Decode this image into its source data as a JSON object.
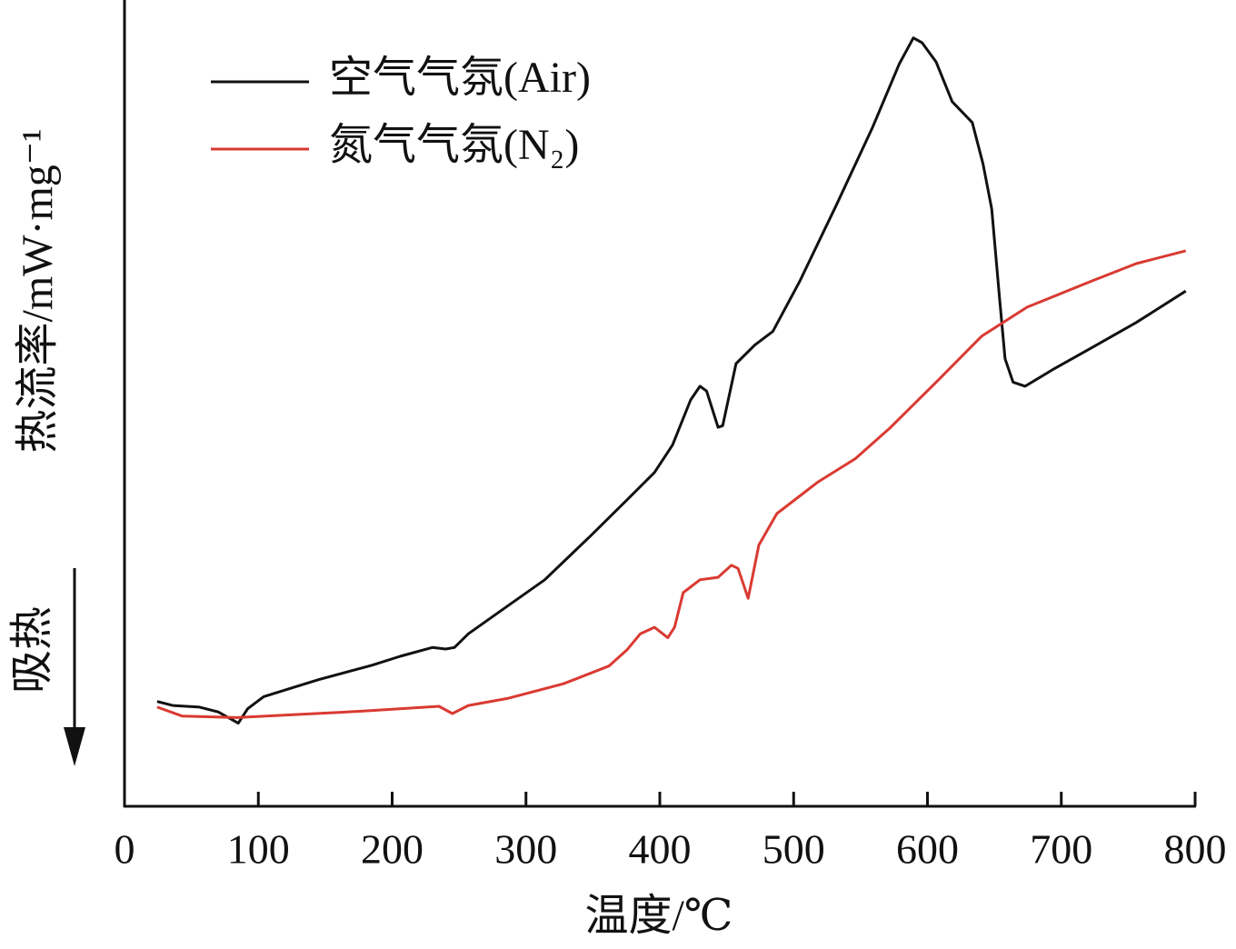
{
  "chart_data": {
    "type": "line",
    "xlabel": "温度/℃",
    "ylabel": "热流率/mW·mg⁻¹",
    "annotation": "吸热",
    "xlim": [
      0,
      800
    ],
    "xticks": [
      0,
      100,
      200,
      300,
      400,
      500,
      600,
      700,
      800
    ],
    "ylim": [
      0,
      100
    ],
    "legend": "upper left",
    "series": [
      {
        "name": "空气气氛(Air)",
        "color": "#111111",
        "x": [
          24.4,
          36,
          56,
          70,
          85,
          92,
          104,
          145,
          185,
          206,
          230,
          240,
          246.5,
          257,
          280,
          314,
          348,
          375.5,
          396,
          409.5,
          423,
          430,
          435,
          443.5,
          447,
          457,
          471,
          484.5,
          504.5,
          532,
          559,
          579,
          589.5,
          596,
          606.5,
          618.5,
          633.5,
          641.5,
          648,
          654,
          658,
          664,
          673,
          695,
          722,
          756,
          793
        ],
        "values": [
          13.0,
          12.5,
          12.3,
          11.7,
          10.3,
          12.1,
          13.6,
          15.7,
          17.5,
          18.6,
          19.7,
          19.5,
          19.7,
          21.4,
          24.1,
          28.1,
          33.5,
          38.0,
          41.4,
          44.8,
          50.4,
          52.1,
          51.5,
          47.0,
          47.2,
          54.9,
          57.2,
          58.9,
          65.1,
          74.6,
          84.2,
          92.1,
          95.3,
          94.7,
          92.3,
          87.4,
          84.8,
          79.7,
          74.1,
          62.8,
          55.5,
          52.6,
          52.1,
          54.3,
          56.8,
          60.0,
          63.9
        ]
      },
      {
        "name": "氮气气氛(N₂)",
        "color": "#d93a32",
        "x": [
          24.4,
          43,
          84,
          131,
          178.5,
          235,
          245,
          257,
          287,
          328,
          362,
          375.5,
          385.5,
          396,
          406,
          411,
          417.5,
          430,
          443.5,
          453.5,
          458.5,
          466,
          474,
          487.5,
          518,
          546,
          572.5,
          606.5,
          640.5,
          674.5,
          722,
          756,
          793
        ],
        "values": [
          12.3,
          11.2,
          11.0,
          11.4,
          11.8,
          12.4,
          11.5,
          12.5,
          13.4,
          15.2,
          17.4,
          19.4,
          21.4,
          22.2,
          20.9,
          22.2,
          26.5,
          28.1,
          28.4,
          29.9,
          29.5,
          25.8,
          32.4,
          36.3,
          40.2,
          43.1,
          47.0,
          52.6,
          58.3,
          61.9,
          65.1,
          67.3,
          68.9
        ]
      }
    ]
  }
}
